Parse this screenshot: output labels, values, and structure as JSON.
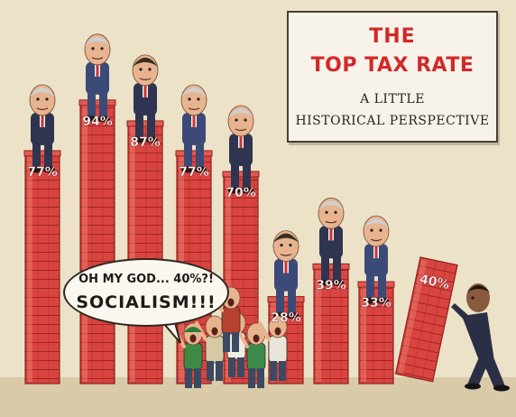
{
  "chart_data": {
    "type": "bar",
    "title": "THE TOP TAX RATE",
    "subtitle_line1": "A LITTLE",
    "subtitle_line2": "HISTORICAL PERSPECTIVE",
    "values": [
      77,
      94,
      87,
      77,
      70,
      28,
      39,
      33,
      40
    ],
    "data_labels": [
      "77%",
      "94%",
      "87%",
      "77%",
      "70%",
      "28%",
      "39%",
      "33%",
      "40%"
    ],
    "last_bar_tilted": true,
    "ylim": [
      0,
      100
    ],
    "grid": false,
    "legend": "none"
  },
  "speech_bubble": {
    "line1": "OH MY GOD... 40%?!",
    "line2": "SOCIALISM!!!"
  },
  "colors": {
    "bar_fill": "#d8443f",
    "bar_light": "#ec7a6c",
    "bar_mortar": "#a32522",
    "background": "#ece2c8",
    "title_red": "#d3282a",
    "suit_dark": "#2f3550",
    "suit_blue": "#3c4a78",
    "skin": "#e7b48f",
    "hair_gray": "#cfcfcf",
    "crowd_green": "#3d8a44"
  }
}
